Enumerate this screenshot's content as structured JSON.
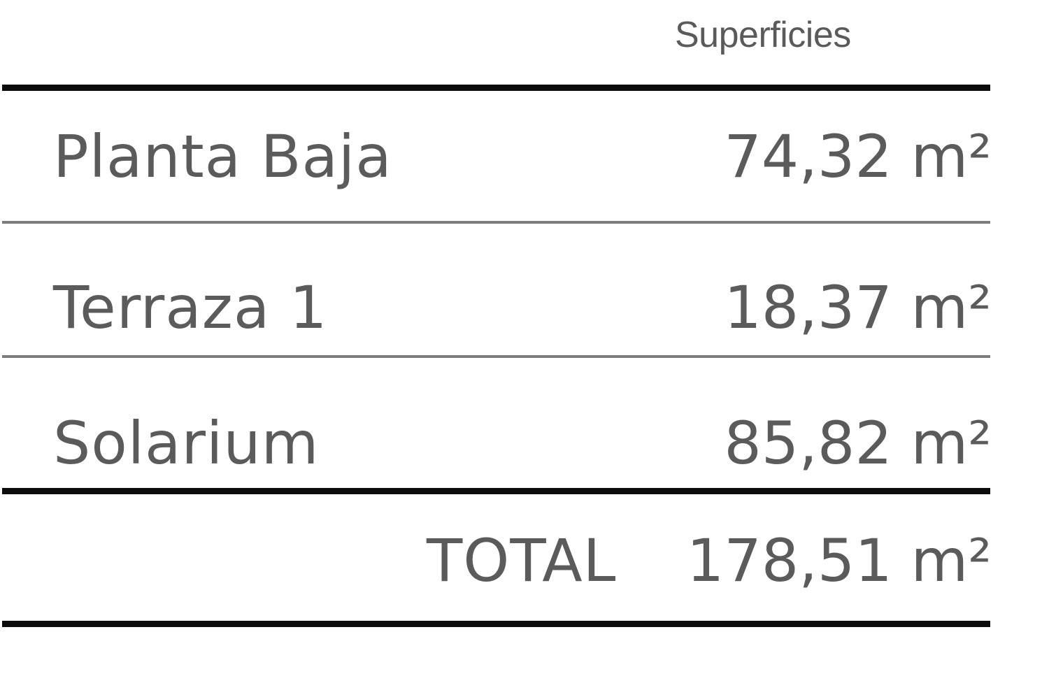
{
  "table": {
    "header": "Superficies",
    "rows": [
      {
        "label": "Planta Baja",
        "value": "74,32 m²"
      },
      {
        "label": "Terraza 1",
        "value": "18,37 m²"
      },
      {
        "label": "Solarium",
        "value": "85,82 m²"
      }
    ],
    "total": {
      "label": "TOTAL",
      "value": "178,51 m²"
    }
  }
}
